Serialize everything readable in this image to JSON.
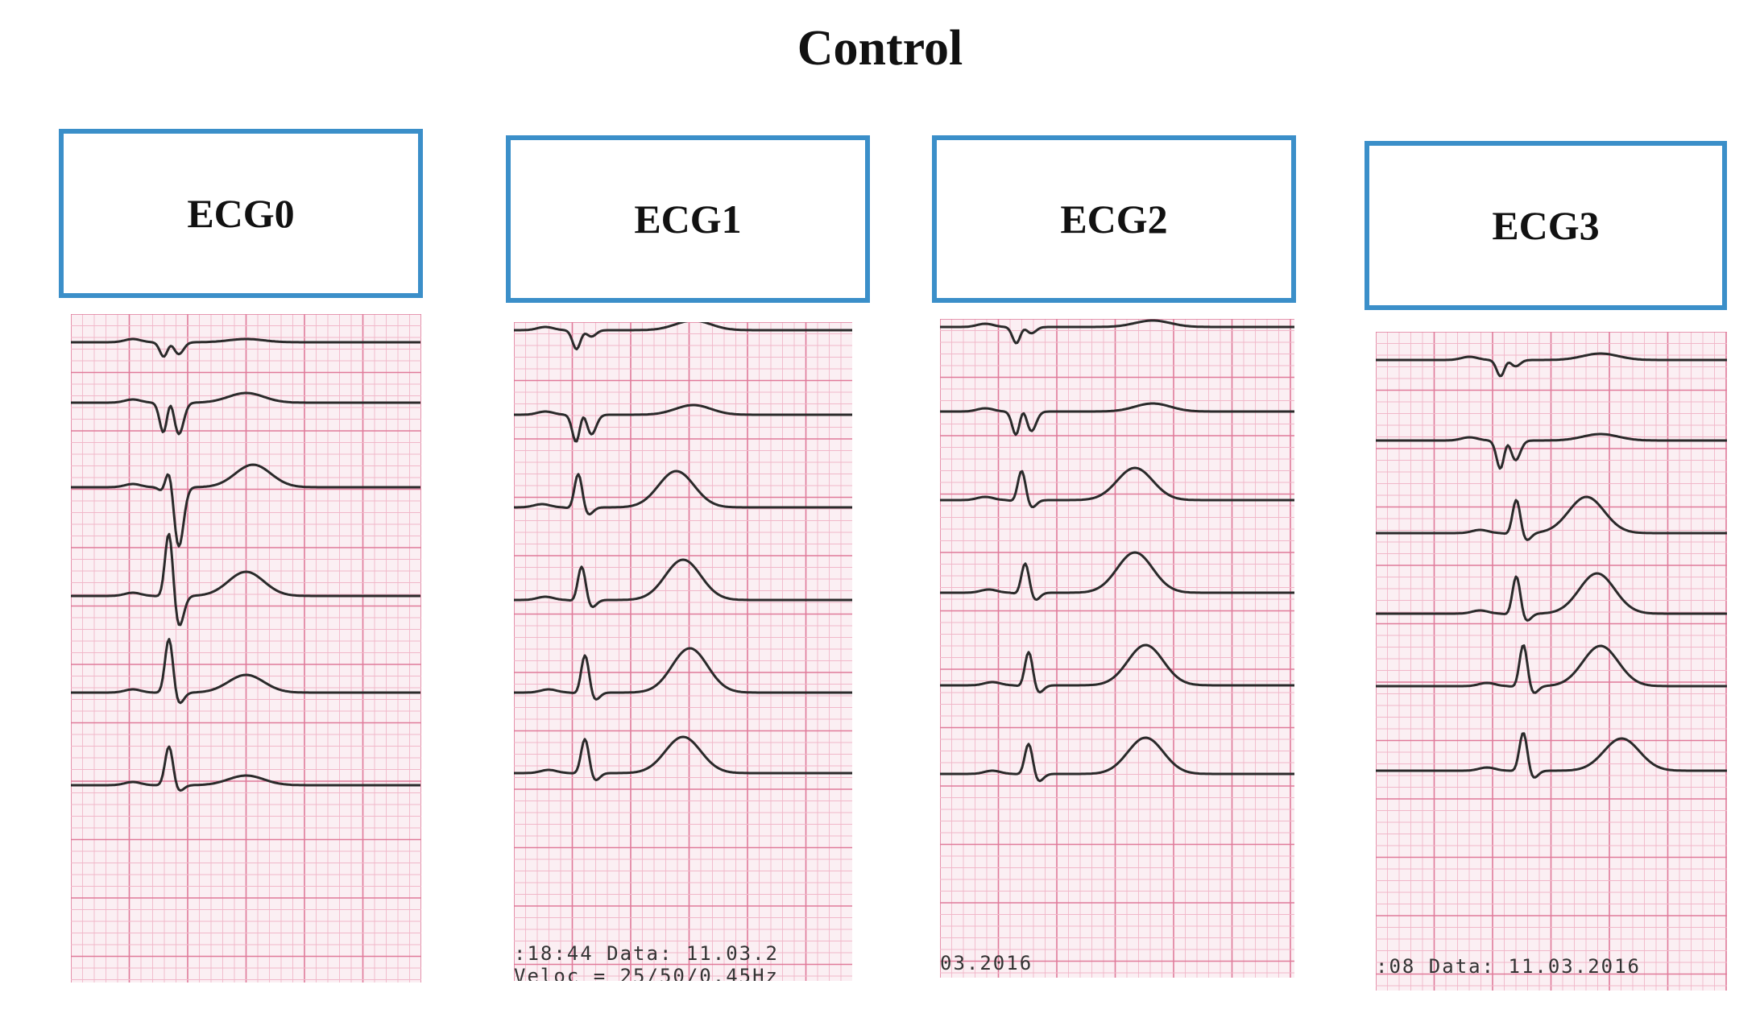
{
  "title": "Control",
  "panels": [
    {
      "label": "ECG0",
      "footer_lines": []
    },
    {
      "label": "ECG1",
      "footer_lines": [
        ":18:44   Data: 11.03.2",
        "Veloc = 25/50/0.45Hz"
      ]
    },
    {
      "label": "ECG2",
      "footer_lines": [
        "03.2016"
      ]
    },
    {
      "label": "ECG3",
      "footer_lines": [
        ":08  Data: 11.03.2016",
        ""
      ]
    }
  ],
  "colors": {
    "box_border": "#3b8fc9",
    "grid_minor": "#f1b7c9",
    "grid_major": "#e07a9a",
    "paper": "#fbeff3",
    "trace": "#2a2a2a"
  }
}
